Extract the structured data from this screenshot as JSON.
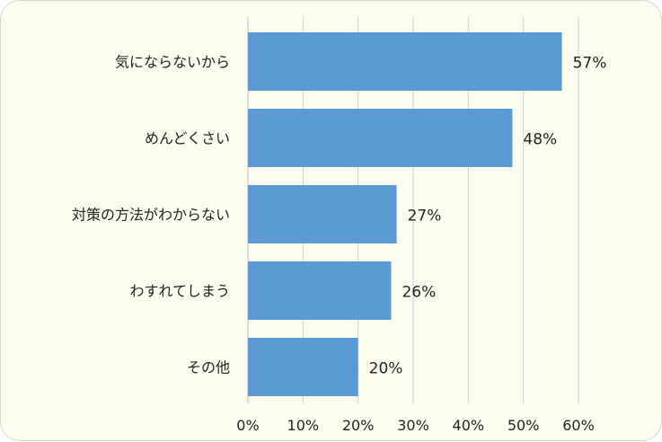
{
  "chart_data": {
    "type": "bar",
    "orientation": "horizontal",
    "categories": [
      "気にならないから",
      "めんどくさい",
      "対策の方法がわからない",
      "わすれてしまう",
      "その他"
    ],
    "values": [
      57,
      48,
      27,
      26,
      20
    ],
    "value_labels": [
      "57%",
      "48%",
      "27%",
      "26%",
      "20%"
    ],
    "x_ticks": [
      "0%",
      "10%",
      "20%",
      "30%",
      "40%",
      "50%",
      "60%"
    ],
    "xlim": [
      0,
      60
    ],
    "grid": "vertical",
    "legend": "none",
    "colors": {
      "bar": "#5b9bd5",
      "grid": "#d0d0d0",
      "background": "#fdfdf0"
    }
  }
}
